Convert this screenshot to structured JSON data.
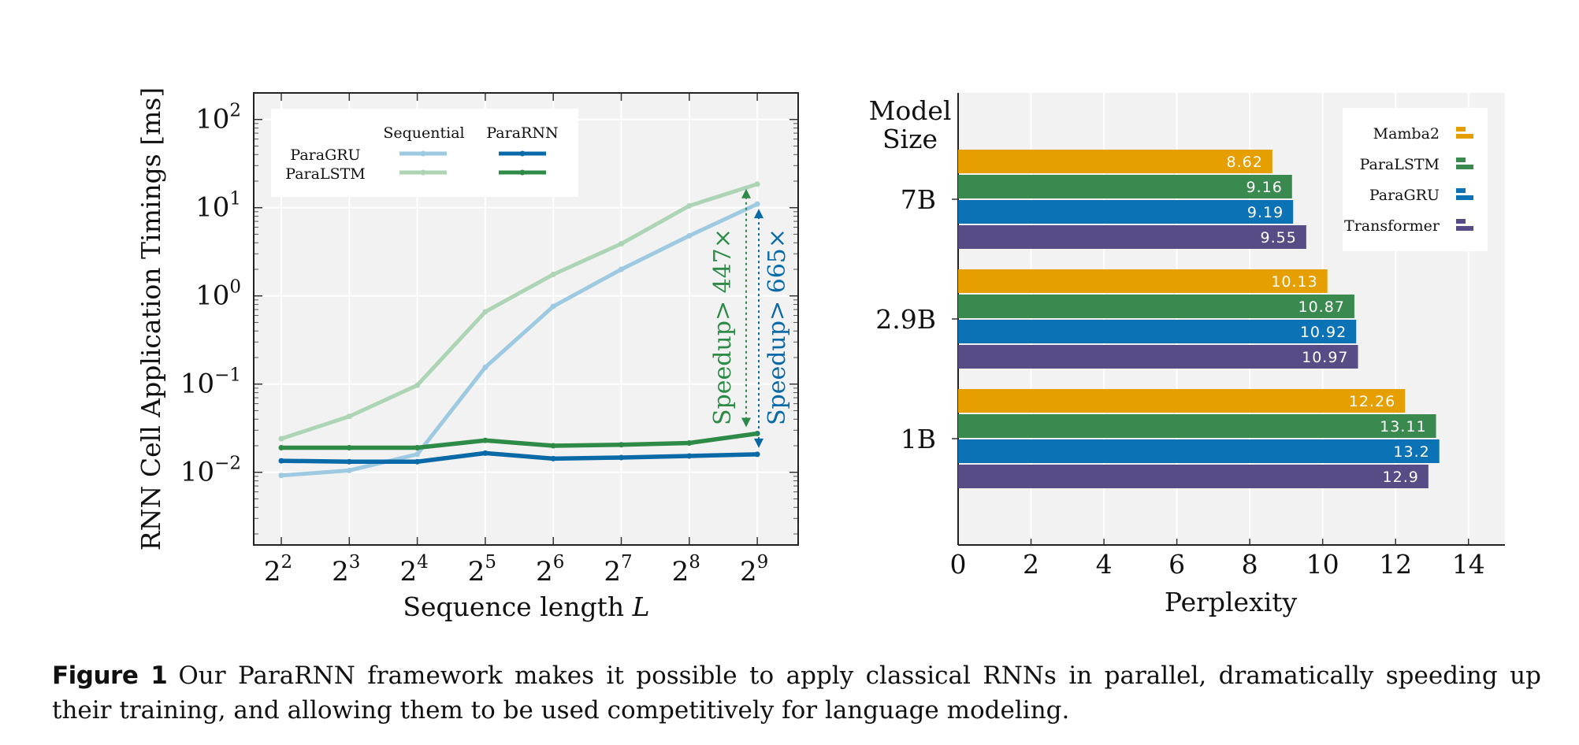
{
  "chart_data": [
    {
      "type": "line",
      "yscale": "log",
      "ylabel": "RNN Cell Application Timings [ms]",
      "xlabel": "Sequence length",
      "xlabel_var": "L",
      "x_base": "2",
      "x_exponents": [
        "2",
        "3",
        "4",
        "5",
        "6",
        "7",
        "8",
        "9"
      ],
      "y_base": "10",
      "y_tick_exponents": [
        "2",
        "1",
        "0",
        "−1",
        "−2"
      ],
      "y_tick_values": [
        100,
        10,
        1,
        0.1,
        0.01
      ],
      "ylim": [
        0.0015,
        200
      ],
      "legend": {
        "col_headers": [
          "Sequential",
          "ParaRNN"
        ],
        "row_labels": [
          "ParaGRU",
          "ParaLSTM"
        ]
      },
      "series": [
        {
          "name": "ParaGRU Sequential",
          "color": "#9ecae1",
          "width": 5,
          "values": [
            0.0092,
            0.0105,
            0.016,
            0.155,
            0.76,
            2.0,
            4.8,
            11.0
          ]
        },
        {
          "name": "ParaLSTM Sequential",
          "color": "#add5b5",
          "width": 5,
          "values": [
            0.024,
            0.043,
            0.097,
            0.66,
            1.75,
            3.9,
            10.5,
            18.5
          ]
        },
        {
          "name": "ParaGRU ParaRNN",
          "color": "#0a6aa8",
          "width": 5.5,
          "values": [
            0.0135,
            0.0132,
            0.0132,
            0.0165,
            0.0143,
            0.0147,
            0.0153,
            0.016
          ]
        },
        {
          "name": "ParaLSTM ParaRNN",
          "color": "#2e8b47",
          "width": 5.5,
          "values": [
            0.019,
            0.019,
            0.019,
            0.023,
            0.02,
            0.0205,
            0.0215,
            0.0275
          ]
        }
      ],
      "annotations": [
        {
          "text": "Speedup> 447×",
          "color": "#2e8b47"
        },
        {
          "text": "Speedup> 665×",
          "color": "#0a6aa8"
        }
      ]
    },
    {
      "type": "bar",
      "orientation": "horizontal",
      "xlabel": "Perplexity",
      "ylabel_lines": [
        "Model",
        "Size"
      ],
      "xlim": [
        0,
        15
      ],
      "xticks": [
        "0",
        "2",
        "4",
        "6",
        "8",
        "10",
        "12",
        "14"
      ],
      "categories": [
        "7B",
        "2.9B",
        "1B"
      ],
      "series": [
        {
          "name": "Mamba2",
          "color": "#e69f00",
          "values": [
            8.62,
            10.13,
            12.26
          ],
          "labels": [
            "8.62",
            "10.13",
            "12.26"
          ]
        },
        {
          "name": "ParaLSTM",
          "color": "#3a8a50",
          "values": [
            9.16,
            10.87,
            13.11
          ],
          "labels": [
            "9.16",
            "10.87",
            "13.11"
          ]
        },
        {
          "name": "ParaGRU",
          "color": "#0b72b5",
          "values": [
            9.19,
            10.92,
            13.2
          ],
          "labels": [
            "9.19",
            "10.92",
            "13.2"
          ]
        },
        {
          "name": "Transformer",
          "color": "#574c85",
          "values": [
            9.55,
            10.97,
            12.9
          ],
          "labels": [
            "9.55",
            "10.97",
            "12.9"
          ]
        }
      ]
    }
  ],
  "caption": {
    "label": "Figure 1",
    "text": "Our ParaRNN framework makes it possible to apply classical RNNs in parallel, dramatically speeding up their training, and allowing them to be used competitively for language modeling."
  }
}
